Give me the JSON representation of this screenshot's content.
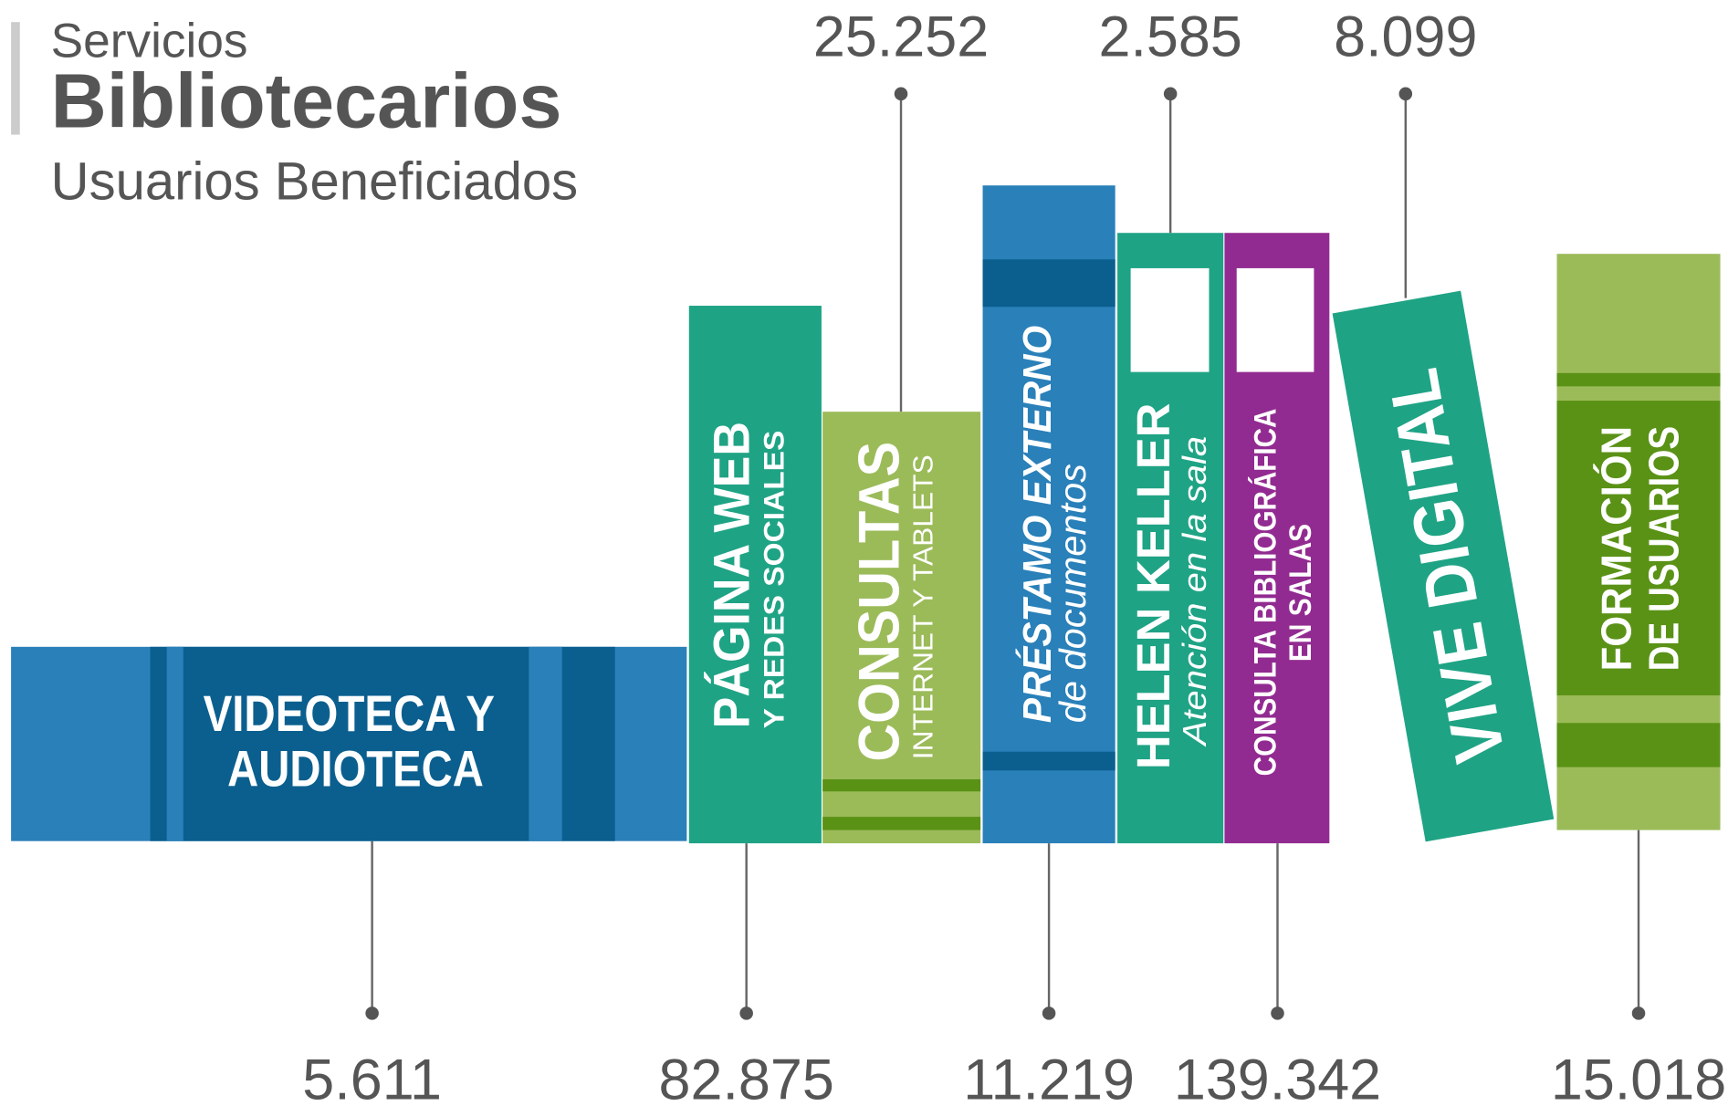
{
  "header": {
    "kicker": "Servicios",
    "title": "Bibliotecarios",
    "subtitle": "Usuarios Beneficiados"
  },
  "books": [
    {
      "title": "VIDEOTECA Y",
      "subtitle": "AUDIOTECA",
      "value": "5.611"
    },
    {
      "title": "PÁGINA WEB",
      "subtitle": "Y REDES SOCIALES",
      "value": "82.875"
    },
    {
      "title": "CONSULTAS",
      "subtitle": "INTERNET Y TABLETS",
      "value": "25.252"
    },
    {
      "title": "PRÉSTAMO EXTERNO",
      "subtitle": "de documentos",
      "value": "11.219"
    },
    {
      "title": "HELEN KELLER",
      "subtitle": "Atención en la sala",
      "value": "2.585"
    },
    {
      "title": "CONSULTA BIBLIOGRÁFICA",
      "subtitle": "EN SALAS",
      "value": "139.342"
    },
    {
      "title": "VIVE DIGITAL",
      "value": "8.099"
    },
    {
      "title": "FORMACIÓN",
      "subtitle": "DE USUARIOS",
      "value": "15.018"
    }
  ]
}
